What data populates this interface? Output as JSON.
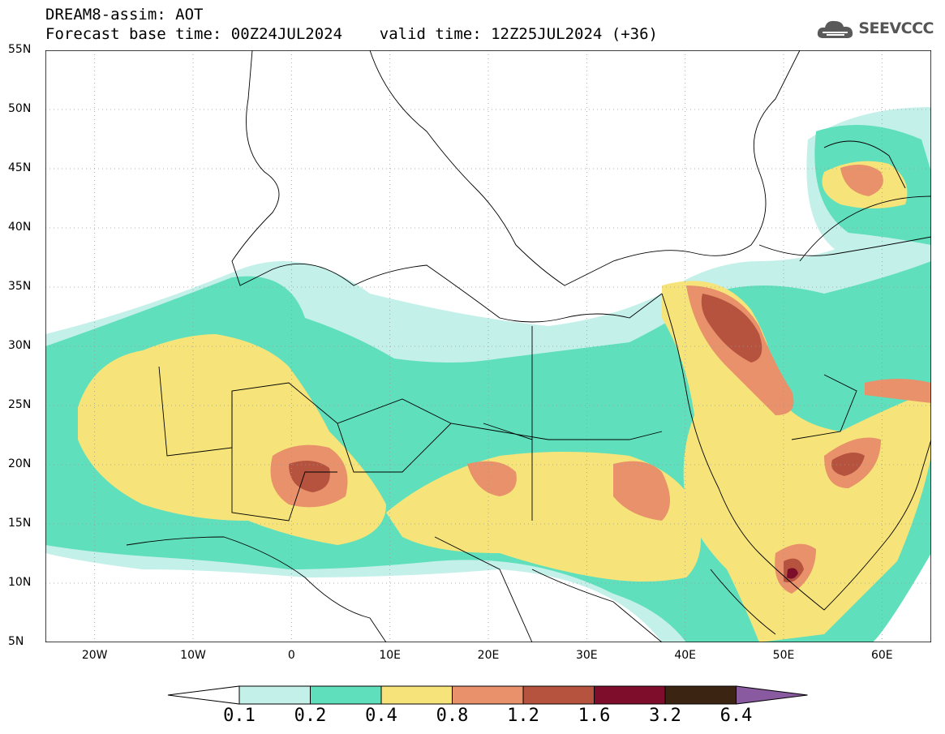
{
  "header": {
    "title": "DREAM8-assim: AOT",
    "forecast_line": "Forecast base time: 00Z24JUL2024    valid time: 12Z25JUL2024 (+36)"
  },
  "logo": {
    "text": "SEEVCCC",
    "icon": "cloud-icon"
  },
  "map_data": {
    "type": "contour-map",
    "variable": "AOT",
    "lat_range": [
      5,
      55
    ],
    "lon_range": [
      -25,
      65
    ],
    "lat_ticks": [
      "55N",
      "50N",
      "45N",
      "40N",
      "35N",
      "30N",
      "25N",
      "20N",
      "15N",
      "10N",
      "5N"
    ],
    "lon_ticks": [
      "20W",
      "10W",
      "0",
      "10E",
      "20E",
      "30E",
      "40E",
      "50E",
      "60E"
    ],
    "gridlines": true
  },
  "colorbar": {
    "labels": [
      "0.1",
      "0.2",
      "0.4",
      "0.8",
      "1.2",
      "1.6",
      "3.2",
      "6.4"
    ],
    "colors": [
      "#ffffff",
      "#c4f0ea",
      "#5fdfbb",
      "#f6e47a",
      "#e8916a",
      "#b5533f",
      "#7d0d2a",
      "#3b2412",
      "#8a5aa0"
    ]
  }
}
